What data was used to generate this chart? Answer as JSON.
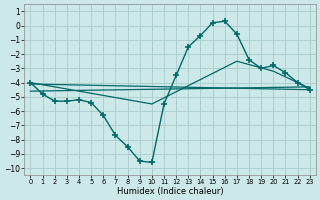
{
  "xlabel": "Humidex (Indice chaleur)",
  "bg_color": "#cce8e8",
  "grid_color": "#aacccc",
  "line_color": "#006868",
  "xlim": [
    -0.5,
    23.5
  ],
  "ylim": [
    -10.5,
    1.5
  ],
  "yticks": [
    1,
    0,
    -1,
    -2,
    -3,
    -4,
    -5,
    -6,
    -7,
    -8,
    -9,
    -10
  ],
  "xticks": [
    0,
    1,
    2,
    3,
    4,
    5,
    6,
    7,
    8,
    9,
    10,
    11,
    12,
    13,
    14,
    15,
    16,
    17,
    18,
    19,
    20,
    21,
    22,
    23
  ],
  "line1_x": [
    0,
    1,
    2,
    3,
    4,
    5,
    6,
    7,
    8,
    9,
    10,
    11,
    12,
    13,
    14,
    15,
    16,
    17,
    18,
    19,
    20,
    21,
    22,
    23
  ],
  "line1_y": [
    -4.0,
    -4.8,
    -5.3,
    -5.3,
    -5.2,
    -5.4,
    -6.3,
    -7.7,
    -8.5,
    -9.5,
    -9.6,
    -5.5,
    -3.5,
    -1.5,
    -0.7,
    0.2,
    0.3,
    -0.6,
    -2.4,
    -3.0,
    -2.8,
    -3.3,
    -4.0,
    -4.5
  ],
  "line2_x": [
    0,
    23
  ],
  "line2_y": [
    -4.1,
    -4.5
  ],
  "line3_x": [
    0,
    23
  ],
  "line3_y": [
    -4.6,
    -4.3
  ],
  "line4_x": [
    0,
    10,
    17,
    20,
    23
  ],
  "line4_y": [
    -4.0,
    -5.5,
    -2.5,
    -3.2,
    -4.4
  ]
}
